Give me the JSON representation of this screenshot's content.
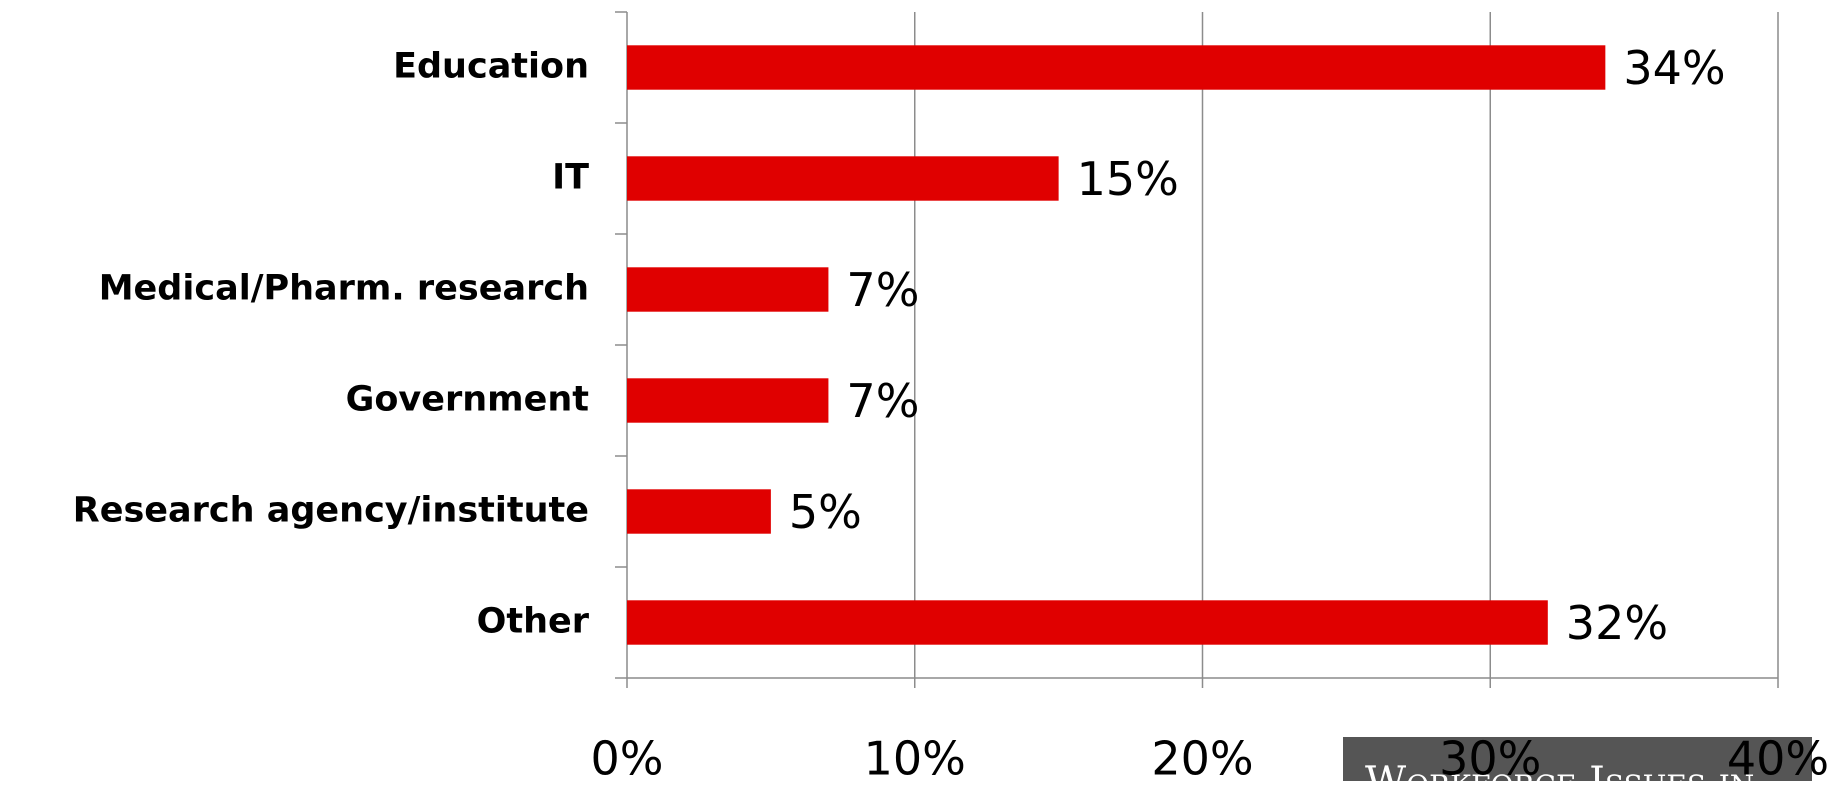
{
  "chart_data": {
    "type": "bar",
    "orientation": "horizontal",
    "categories": [
      "Education",
      "IT",
      "Medical/Pharm. research",
      "Government",
      "Research agency/institute",
      "Other"
    ],
    "values": [
      34,
      15,
      7,
      7,
      5,
      32
    ],
    "value_labels": [
      "34%",
      "15%",
      "7%",
      "7%",
      "5%",
      "32%"
    ],
    "color": "#e00000",
    "xlim": [
      0,
      40
    ],
    "xticks": [
      {
        "value": 0,
        "label": "0%"
      },
      {
        "value": 10,
        "label": "10%"
      },
      {
        "value": 20,
        "label": "20%"
      },
      {
        "value": 30,
        "label": "30%"
      },
      {
        "value": 40,
        "label": "40%"
      }
    ],
    "grid": true,
    "annotation": "Workforce Issues in"
  }
}
